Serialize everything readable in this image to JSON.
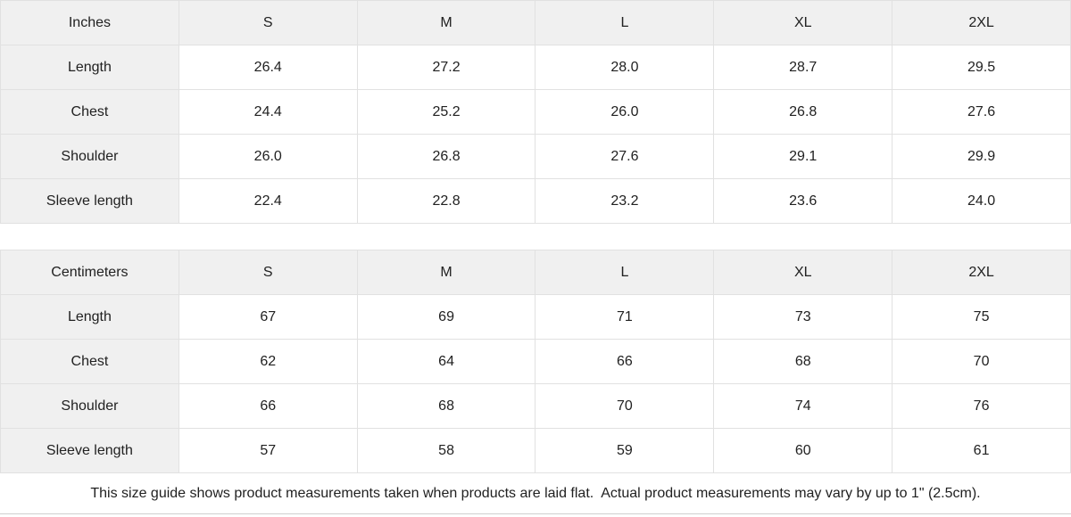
{
  "colors": {
    "header_cell_bg": "#f0f0f0",
    "cell_border": "#e1e1e1",
    "text": "#212121",
    "bottom_divider": "#cfcfcf"
  },
  "tables": [
    {
      "unit_label": "Inches",
      "sizes": [
        "S",
        "M",
        "L",
        "XL",
        "2XL"
      ],
      "rows": [
        {
          "label": "Length",
          "values": [
            "26.4",
            "27.2",
            "28.0",
            "28.7",
            "29.5"
          ]
        },
        {
          "label": "Chest",
          "values": [
            "24.4",
            "25.2",
            "26.0",
            "26.8",
            "27.6"
          ]
        },
        {
          "label": "Shoulder",
          "values": [
            "26.0",
            "26.8",
            "27.6",
            "29.1",
            "29.9"
          ]
        },
        {
          "label": "Sleeve length",
          "values": [
            "22.4",
            "22.8",
            "23.2",
            "23.6",
            "24.0"
          ]
        }
      ]
    },
    {
      "unit_label": "Centimeters",
      "sizes": [
        "S",
        "M",
        "L",
        "XL",
        "2XL"
      ],
      "rows": [
        {
          "label": "Length",
          "values": [
            "67",
            "69",
            "71",
            "73",
            "75"
          ]
        },
        {
          "label": "Chest",
          "values": [
            "62",
            "64",
            "66",
            "68",
            "70"
          ]
        },
        {
          "label": "Shoulder",
          "values": [
            "66",
            "68",
            "70",
            "74",
            "76"
          ]
        },
        {
          "label": "Sleeve length",
          "values": [
            "57",
            "58",
            "59",
            "60",
            "61"
          ]
        }
      ]
    }
  ],
  "footer_note": "This size guide shows product measurements taken when products are laid flat.  Actual product measurements may vary by up to 1\" (2.5cm)."
}
